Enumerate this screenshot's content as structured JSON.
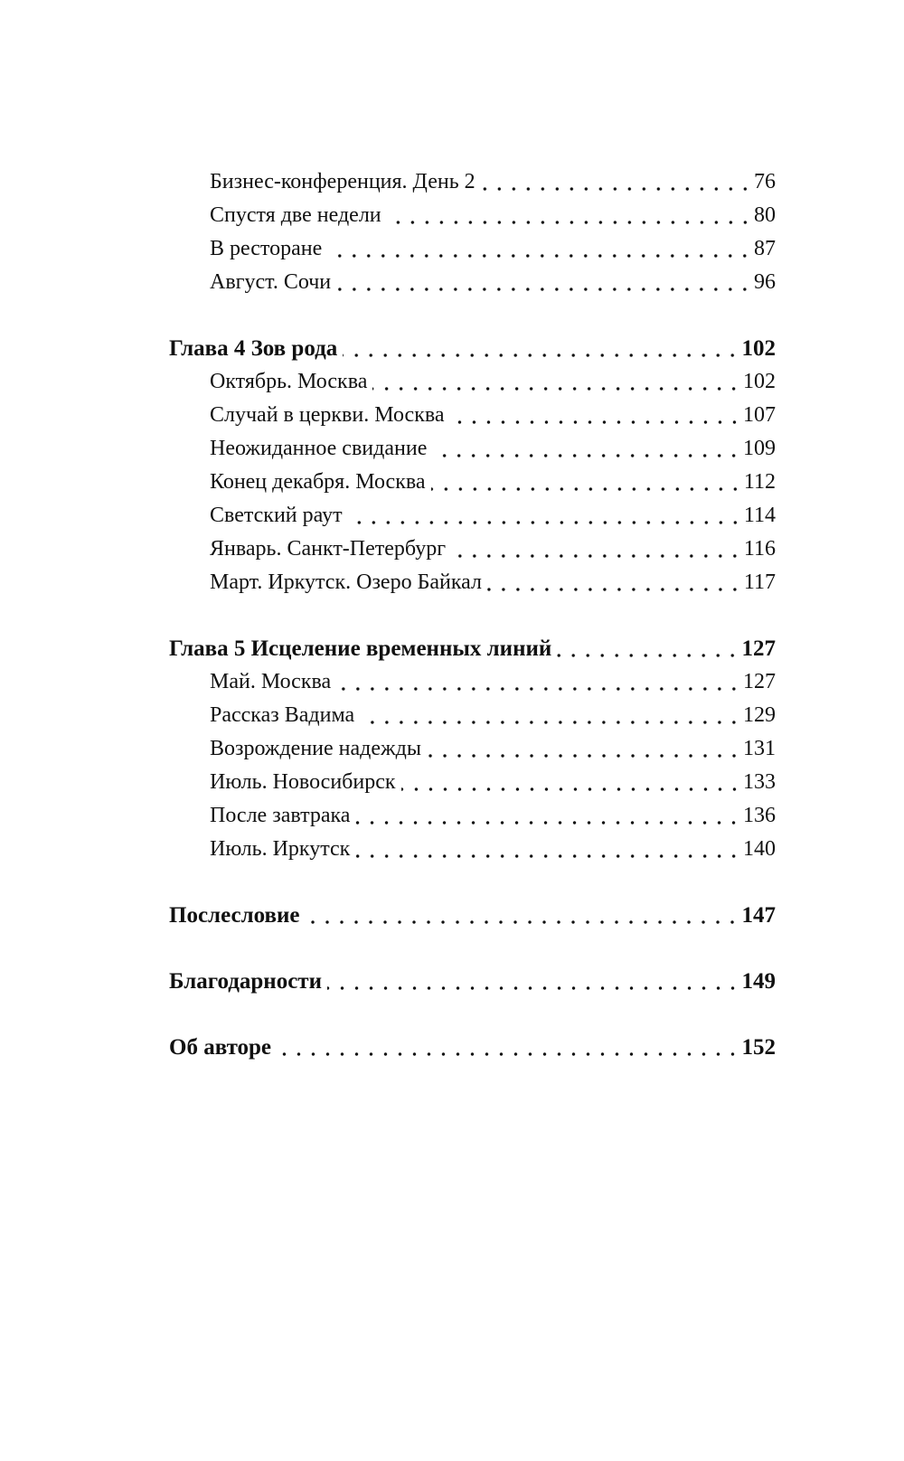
{
  "toc": [
    {
      "level": "sub",
      "title": "Бизнес-конференция. День 2",
      "page": "76"
    },
    {
      "level": "sub",
      "title": "Спустя две недели",
      "page": "80"
    },
    {
      "level": "sub",
      "title": "В ресторане",
      "page": "87"
    },
    {
      "level": "sub",
      "title": "Август. Сочи",
      "page": "96"
    },
    {
      "level": "chapter",
      "title": "Глава 4  Зов рода",
      "page": "102"
    },
    {
      "level": "sub",
      "title": "Октябрь. Москва",
      "page": "102"
    },
    {
      "level": "sub",
      "title": "Случай в церкви. Москва",
      "page": "107"
    },
    {
      "level": "sub",
      "title": "Неожиданное свидание",
      "page": "109"
    },
    {
      "level": "sub",
      "title": "Конец декабря. Москва",
      "page": "112"
    },
    {
      "level": "sub",
      "title": "Светский раут",
      "page": "114"
    },
    {
      "level": "sub",
      "title": "Январь. Санкт-Петербург",
      "page": "116"
    },
    {
      "level": "sub",
      "title": "Март. Иркутск. Озеро Байкал",
      "page": "117"
    },
    {
      "level": "chapter",
      "title": "Глава 5  Исцеление временных линий",
      "page": "127"
    },
    {
      "level": "sub",
      "title": "Май. Москва",
      "page": "127"
    },
    {
      "level": "sub",
      "title": "Рассказ Вадима",
      "page": "129"
    },
    {
      "level": "sub",
      "title": "Возрождение надежды",
      "page": "131"
    },
    {
      "level": "sub",
      "title": "Июль. Новосибирск",
      "page": "133"
    },
    {
      "level": "sub",
      "title": "После завтрака",
      "page": "136"
    },
    {
      "level": "sub",
      "title": "Июль. Иркутск",
      "page": "140"
    },
    {
      "level": "chapter",
      "title": "Послесловие",
      "page": "147"
    },
    {
      "level": "chapter",
      "title": "Благодарности",
      "page": "149"
    },
    {
      "level": "chapter",
      "title": "Об авторе",
      "page": "152"
    }
  ]
}
